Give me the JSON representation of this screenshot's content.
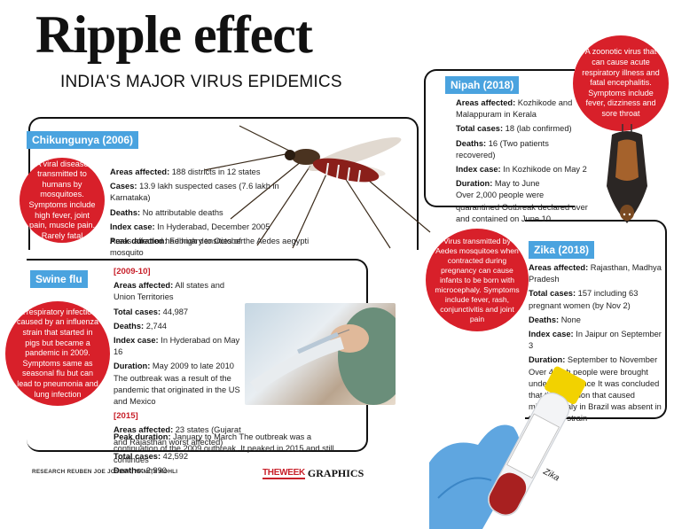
{
  "header": {
    "title": "Ripple effect",
    "subtitle": "INDIA'S MAJOR VIRUS EPIDEMICS"
  },
  "chikungunya": {
    "tag": "Chikungunya (2006)",
    "description": "A viral disease transmitted to humans by mosquitoes. Symptoms include high fever, joint pain, muscle pain. Rarely fatal",
    "areas_label": "Areas affected:",
    "areas": "188 districts in 12 states",
    "cases_label": "Cases:",
    "cases": "13.9 lakh suspected cases (7.6 lakh in Karnataka)",
    "deaths_label": "Deaths:",
    "deaths": "No attributable deaths",
    "index_label": "Index case:",
    "index": "In Hyderabad, December 2005",
    "peak_label": "Peak duration:",
    "peak": "February to October",
    "note": "Areas affected had high densities of the Aedes aegypti mosquito"
  },
  "swine": {
    "tag": "Swine flu",
    "description": "A respiratory infection caused by an influenza strain that started in pigs but became a pandemic in 2009. Symptoms same as seasonal flu but can lead to pneumonia and lung infection",
    "year1": "[2009-10]",
    "areas1_label": "Areas affected:",
    "areas1": "All states and Union Territories",
    "cases1_label": "Total cases:",
    "cases1": "44,987",
    "deaths1_label": "Deaths:",
    "deaths1": "2,744",
    "index1_label": "Index case:",
    "index1": "In Hyderabad on May 16",
    "duration1_label": "Duration:",
    "duration1": "May 2009 to late 2010",
    "note1": "The outbreak was a result of the pandemic that originated in the US and Mexico",
    "year2": "[2015]",
    "areas2_label": "Areas affected:",
    "areas2": "23 states (Gujarat and Rajasthan worst affected)",
    "cases2_label": "Total cases:",
    "cases2": "42,592",
    "deaths2_label": "Deaths:",
    "deaths2": "2,990",
    "peak2_label": "Peak duration:",
    "peak2": "January to March The outbreak was a continuation of the 2009 outbreak. It peaked in 2015 and still continues"
  },
  "nipah": {
    "tag": "Nipah (2018)",
    "description": "A zoonotic virus that can cause acute respiratory illness and fatal encephalitis. Symptoms include fever, dizziness and sore throat",
    "areas_label": "Areas affected:",
    "areas": "Kozhikode and Malappuram in Kerala",
    "cases_label": "Total cases:",
    "cases": "18 (lab confirmed)",
    "deaths_label": "Deaths:",
    "deaths": "16 (Two patients recovered)",
    "index_label": "Index case:",
    "index": "In Kozhikode on May 2",
    "duration_label": "Duration:",
    "duration": "May to June",
    "note": "Over 2,000 people were quarantined Outbreak declared over and contained on June 10"
  },
  "zika": {
    "tag": "Zika (2018)",
    "description": "Virus transmitted by Aedes mosquitoes when contracted during pregnancy can cause infants to be born with microcephaly. Symptoms include fever, rash, conjunctivitis and joint pain",
    "areas_label": "Areas affected:",
    "areas": "Rajasthan, Madhya Pradesh",
    "cases_label": "Total cases:",
    "cases": "157 including 63 pregnant women (by Nov 2)",
    "deaths_label": "Deaths:",
    "deaths": "None",
    "index_label": "Index case:",
    "index": "In Jaipur on September 3",
    "duration_label": "Duration:",
    "duration": "September to November",
    "note": "Over 4 lakh people were brought under surveillance It was concluded that the mutation that caused microcephaly in Brazil was absent in the Indian strain",
    "vial_label": "Zika"
  },
  "footer": {
    "credit": "RESEARCH REUBEN JOE JOSEPH, NAMITA KOHLI",
    "logo_week": "THEWEEK",
    "logo_graphics": "GRAPHICS"
  },
  "colors": {
    "accent_red": "#d8202a",
    "tag_blue": "#4aa3df"
  }
}
